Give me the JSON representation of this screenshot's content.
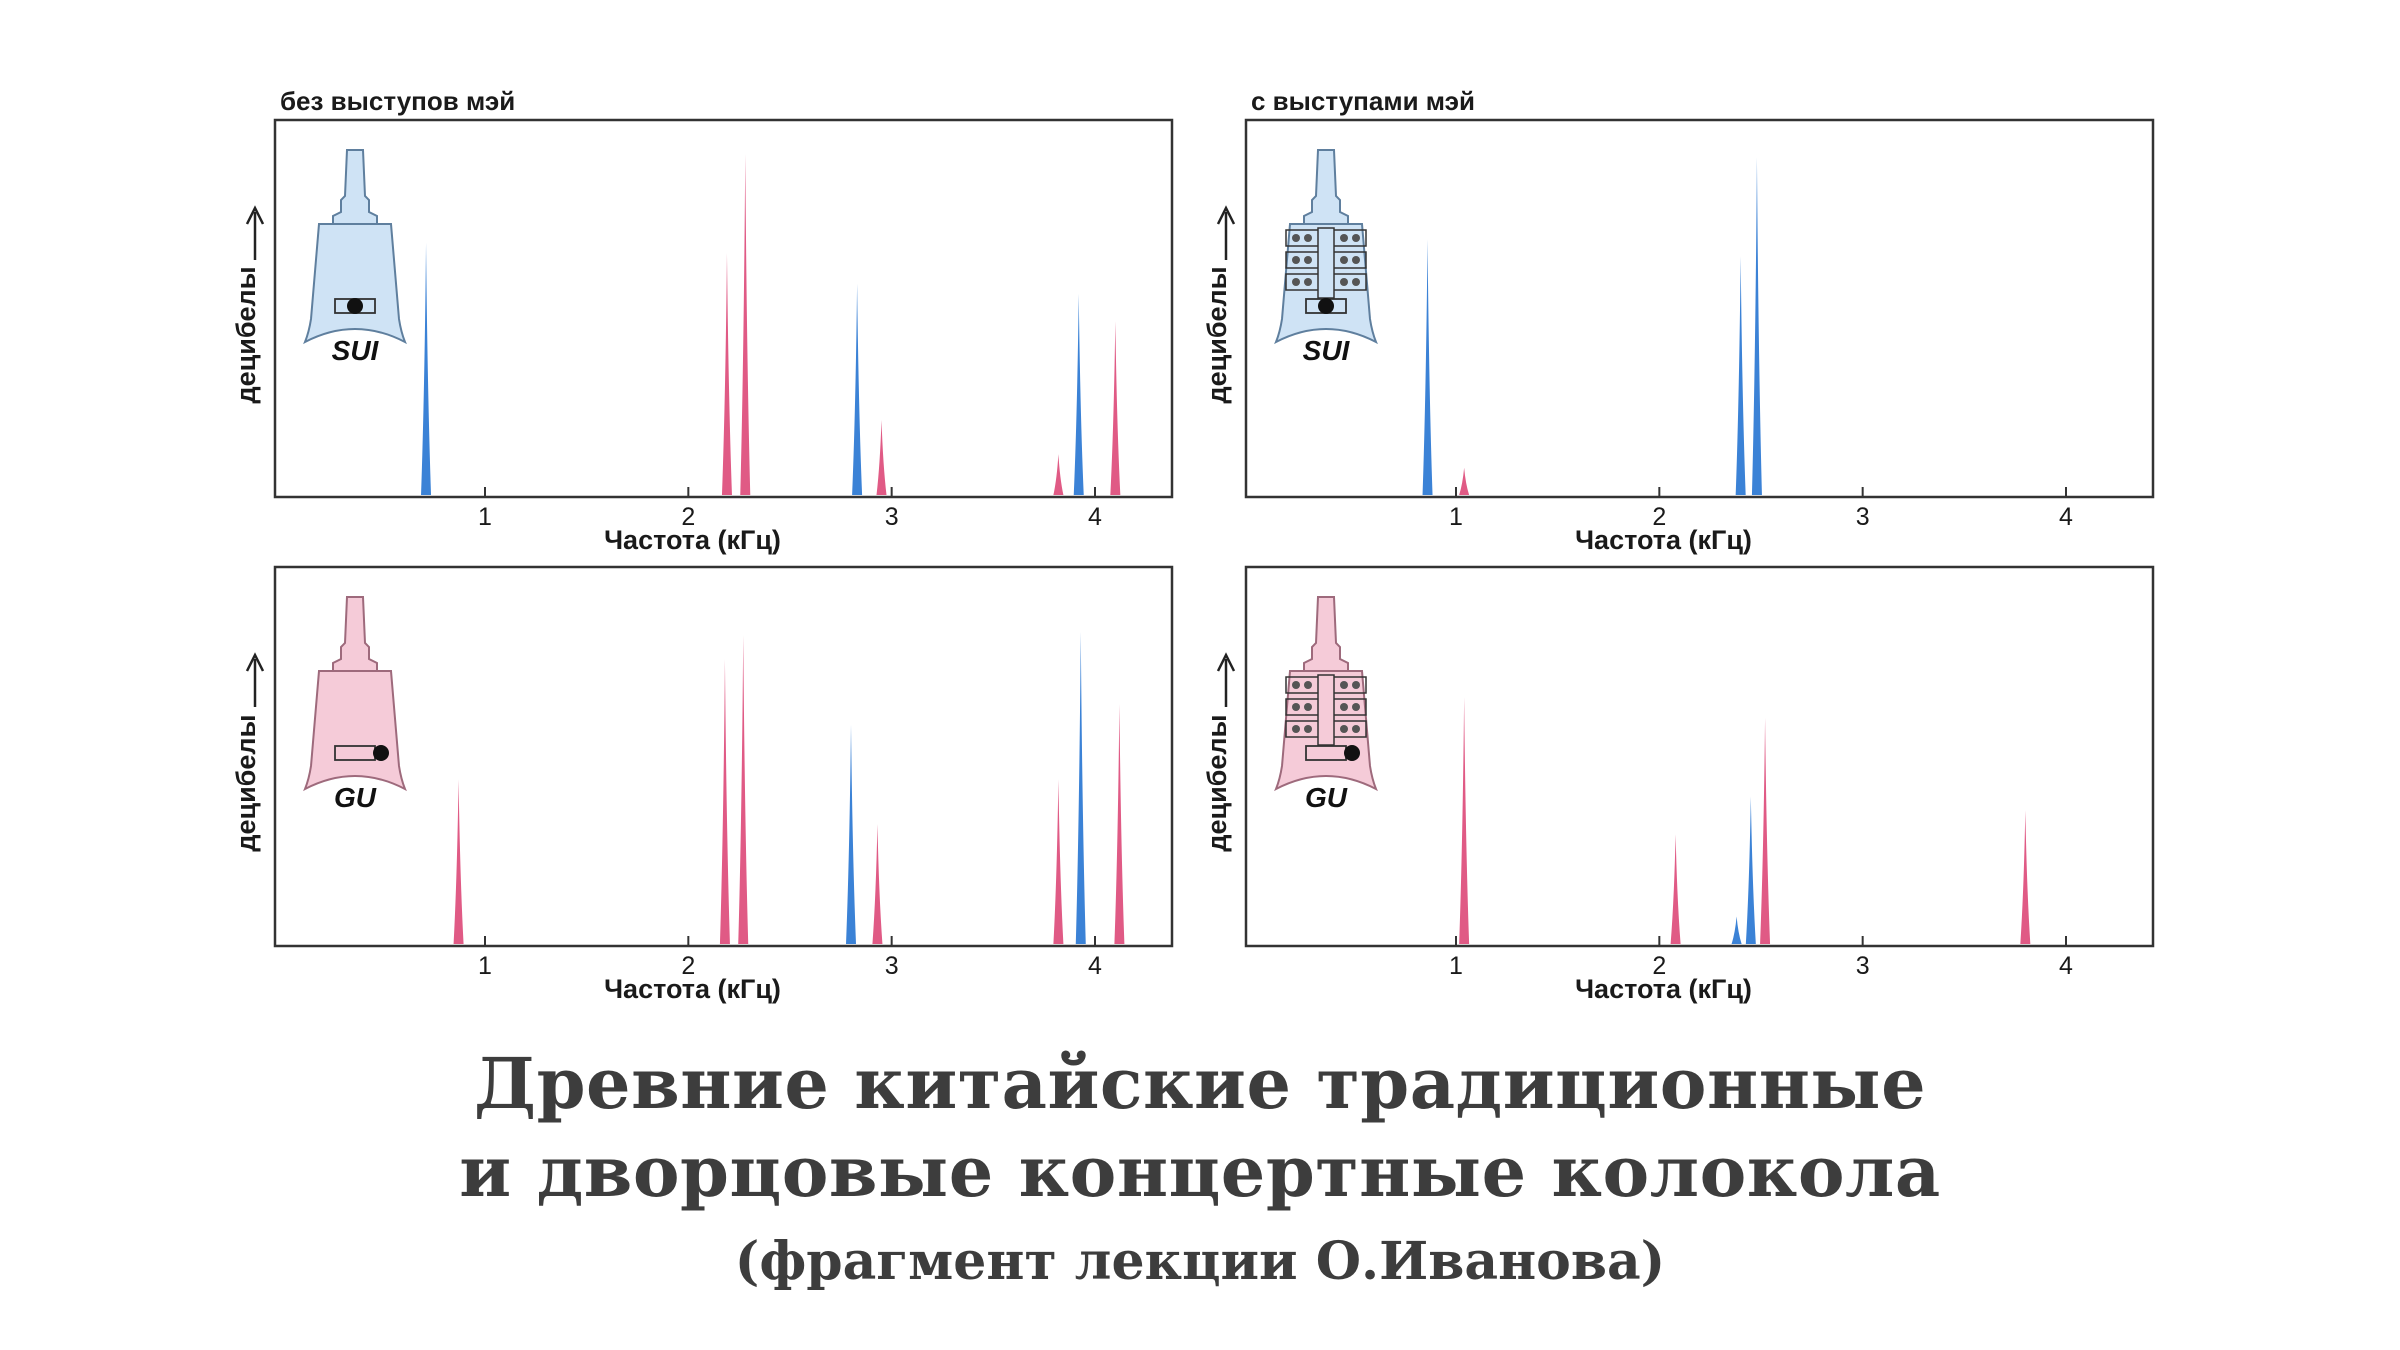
{
  "chart_data": [
    {
      "type": "bar",
      "panel": "top-left",
      "title": "без выступов мэй",
      "xlabel": "Частота (кГц)",
      "ylabel": "децибелы",
      "bell_label": "SUI",
      "xticks": [
        "1",
        "2",
        "3",
        "4"
      ],
      "xlim": [
        0,
        4.3
      ],
      "ylim": [
        0,
        1
      ],
      "series": [
        {
          "color": "#3b82d6",
          "x": [
            0.71,
            2.83,
            3.92
          ],
          "values": [
            0.74,
            0.62,
            0.59
          ]
        },
        {
          "color": "#e05a85",
          "x": [
            2.19,
            2.28,
            2.95,
            3.82,
            4.1
          ],
          "values": [
            0.71,
            1.0,
            0.22,
            0.12,
            0.51
          ]
        }
      ]
    },
    {
      "type": "bar",
      "panel": "top-right",
      "title": "с выступами мэй",
      "xlabel": "Частота (кГц)",
      "ylabel": "децибелы",
      "bell_label": "SUI",
      "xticks": [
        "1",
        "2",
        "3",
        "4"
      ],
      "xlim": [
        0,
        4.3
      ],
      "ylim": [
        0,
        1
      ],
      "series": [
        {
          "color": "#3b82d6",
          "x": [
            0.86,
            2.4,
            2.48
          ],
          "values": [
            0.75,
            0.7,
            0.99
          ]
        },
        {
          "color": "#e05a85",
          "x": [
            1.04
          ],
          "values": [
            0.08
          ]
        }
      ]
    },
    {
      "type": "bar",
      "panel": "bottom-left",
      "title": "",
      "xlabel": "Частота (кГц)",
      "ylabel": "децибелы",
      "bell_label": "GU",
      "xticks": [
        "1",
        "2",
        "3",
        "4"
      ],
      "xlim": [
        0,
        4.3
      ],
      "ylim": [
        0,
        1
      ],
      "series": [
        {
          "color": "#3b82d6",
          "x": [
            2.8,
            3.93
          ],
          "values": [
            0.64,
            0.91
          ]
        },
        {
          "color": "#e05a85",
          "x": [
            0.87,
            2.18,
            2.27,
            2.93,
            3.82,
            4.12
          ],
          "values": [
            0.48,
            0.83,
            0.9,
            0.35,
            0.48,
            0.7
          ]
        }
      ]
    },
    {
      "type": "bar",
      "panel": "bottom-right",
      "title": "",
      "xlabel": "Частота (кГц)",
      "ylabel": "децибелы",
      "bell_label": "GU",
      "xticks": [
        "1",
        "2",
        "3",
        "4"
      ],
      "xlim": [
        0,
        4.3
      ],
      "ylim": [
        0,
        1
      ],
      "series": [
        {
          "color": "#3b82d6",
          "x": [
            2.38,
            2.45
          ],
          "values": [
            0.08,
            0.43
          ]
        },
        {
          "color": "#e05a85",
          "x": [
            1.04,
            2.08,
            2.52,
            3.8
          ],
          "values": [
            0.72,
            0.32,
            0.66,
            0.39
          ]
        }
      ]
    }
  ],
  "caption": {
    "line1": "Древние китайские традиционные",
    "line2": "и дворцовые концертные колокола",
    "subtitle": "(фрагмент лекции О.Иванова)"
  }
}
